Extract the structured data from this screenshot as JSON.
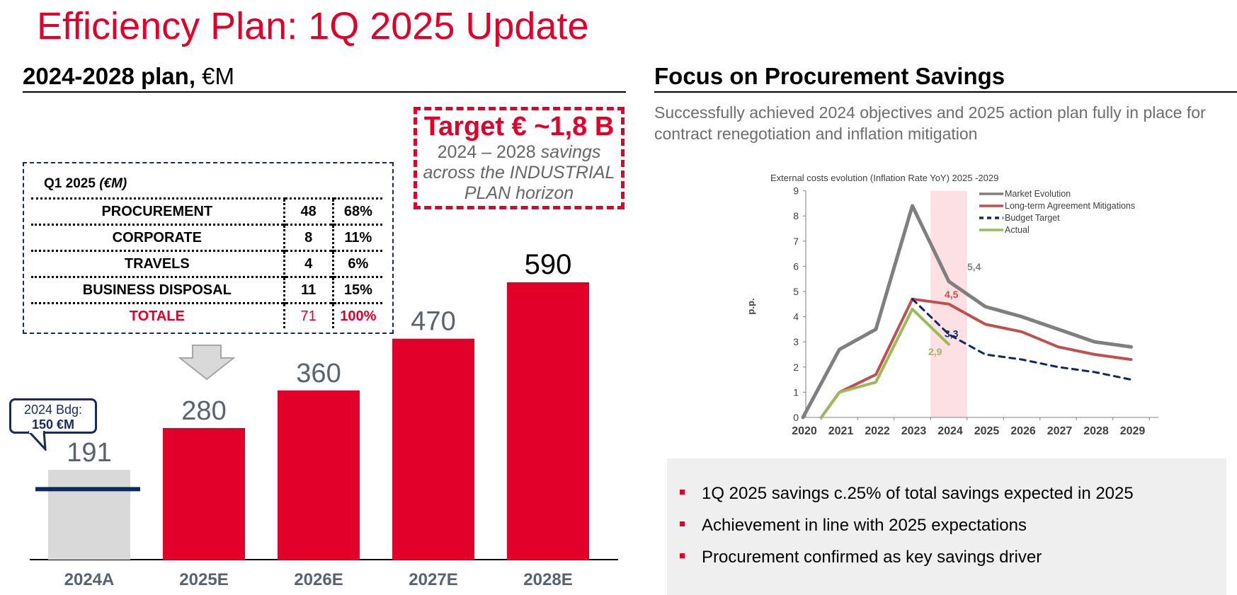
{
  "title": "Efficiency Plan: 1Q 2025 Update",
  "left_section": {
    "heading": "2024-2028 plan,",
    "unit": "€M"
  },
  "right_section": {
    "heading": "Focus on Procurement Savings"
  },
  "target_box": {
    "title": "Target € ~1,8 B",
    "line1_plain": "2024 – 2028 ",
    "line1_italic": "savings",
    "line2": "across the INDUSTRIAL",
    "line3": "PLAN horizon"
  },
  "q1_table": {
    "title": "Q1 2025",
    "title_unit": "(€M)",
    "rows": [
      {
        "label": "PROCUREMENT",
        "value": "48",
        "pct": "68%"
      },
      {
        "label": "CORPORATE",
        "value": "8",
        "pct": "11%"
      },
      {
        "label": "TRAVELS",
        "value": "4",
        "pct": "6%"
      },
      {
        "label": "BUSINESS DISPOSAL",
        "value": "11",
        "pct": "15%"
      }
    ],
    "total": {
      "label": "TOTALE",
      "value": "71",
      "pct": "100%"
    }
  },
  "budget_callout": {
    "line1": "2024 Bdg:",
    "line2": "150 €M",
    "value": 150
  },
  "procurement_text": "Successfully achieved 2024 objectives and 2025 action plan fully in place for contract renegotiation and inflation mitigation",
  "bullets": [
    "1Q 2025 savings c.25% of total savings expected in 2025",
    "Achievement in line with 2025 expectations",
    "Procurement confirmed as key savings driver"
  ],
  "colors": {
    "red": "#e2002a",
    "grey_bar": "#d9d9d9",
    "navy": "#0d2a5c",
    "label_grey": "#59636e"
  },
  "chart_data": [
    {
      "type": "bar",
      "title": "2024-2028 plan, €M",
      "categories": [
        "2024A",
        "2025E",
        "2026E",
        "2027E",
        "2028E"
      ],
      "values": [
        191,
        280,
        360,
        470,
        590
      ],
      "value_labels": [
        "191",
        "280",
        "360",
        "470",
        "590"
      ],
      "bar_colors": [
        "#d9d9d9",
        "#e2002a",
        "#e2002a",
        "#e2002a",
        "#e2002a"
      ],
      "budget_line": {
        "category": "2024A",
        "value": 150
      },
      "ylim": [
        0,
        600
      ]
    },
    {
      "type": "line",
      "title": "External costs evolution (Inflation Rate YoY) 2025 -2029",
      "xlabel": "",
      "ylabel": "p.p.",
      "x": [
        "2020",
        "2021",
        "2022",
        "2023",
        "2024",
        "2025",
        "2026",
        "2027",
        "2028",
        "2029"
      ],
      "yticks": [
        "0",
        "1",
        "2",
        "3",
        "4",
        "5",
        "6",
        "7",
        "8",
        "9"
      ],
      "ylim": [
        0,
        9
      ],
      "highlight_band": {
        "from": 3.5,
        "to": 4.5,
        "color": "#fde0e4"
      },
      "series": [
        {
          "name": "Market Evolution",
          "color": "#7f7f7f",
          "dash": false,
          "points": [
            [
              0,
              0
            ],
            [
              1,
              2.7
            ],
            [
              2,
              3.5
            ],
            [
              3,
              8.4
            ],
            [
              4,
              5.4
            ],
            [
              5,
              4.4
            ],
            [
              6,
              4.0
            ],
            [
              7,
              3.5
            ],
            [
              8,
              3.0
            ],
            [
              9,
              2.8
            ]
          ]
        },
        {
          "name": "Long-term Agreement Mitigations",
          "color": "#c0504d",
          "dash": false,
          "points": [
            [
              0.5,
              0
            ],
            [
              1,
              1.0
            ],
            [
              2,
              1.7
            ],
            [
              3,
              4.7
            ],
            [
              4,
              4.5
            ],
            [
              5,
              3.7
            ],
            [
              6,
              3.4
            ],
            [
              7,
              2.8
            ],
            [
              8,
              2.5
            ],
            [
              9,
              2.3
            ]
          ]
        },
        {
          "name": "Budget Target",
          "color": "#0d2a5c",
          "dash": true,
          "points": [
            [
              3,
              4.7
            ],
            [
              4,
              3.3
            ],
            [
              5,
              2.5
            ],
            [
              6,
              2.3
            ],
            [
              7,
              2.0
            ],
            [
              8,
              1.8
            ],
            [
              9,
              1.5
            ]
          ]
        },
        {
          "name": "Actual",
          "color": "#9bbb59",
          "dash": false,
          "points": [
            [
              0.5,
              0
            ],
            [
              1,
              1.0
            ],
            [
              2,
              1.4
            ],
            [
              3,
              4.3
            ],
            [
              4,
              2.9
            ]
          ]
        }
      ],
      "annotations": [
        {
          "text": "5,4",
          "series": 0,
          "x": 4,
          "y": 5.4
        },
        {
          "text": "4,5",
          "series": 1,
          "x": 4,
          "y": 4.5
        },
        {
          "text": "3,3",
          "series": 2,
          "x": 4,
          "y": 3.3
        },
        {
          "text": "2,9",
          "series": 3,
          "x": 4,
          "y": 2.9
        }
      ]
    }
  ]
}
